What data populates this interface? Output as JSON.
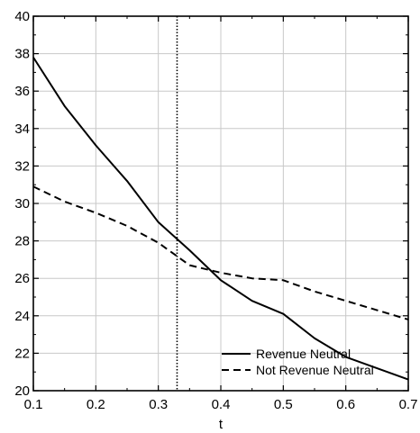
{
  "chart_data": {
    "type": "line",
    "title": "",
    "xlabel": "t",
    "ylabel": "",
    "xlim": [
      0.1,
      0.7
    ],
    "ylim": [
      20,
      40
    ],
    "x_ticks": [
      0.1,
      0.2,
      0.3,
      0.4,
      0.5,
      0.6,
      0.7
    ],
    "x_tick_labels": [
      "0.1",
      "0.2",
      "0.3",
      "0.4",
      "0.5",
      "0.6",
      "0.7"
    ],
    "y_ticks": [
      20,
      22,
      24,
      26,
      28,
      30,
      32,
      34,
      36,
      38,
      40
    ],
    "y_tick_labels": [
      "20",
      "22",
      "24",
      "26",
      "28",
      "30",
      "32",
      "34",
      "36",
      "38",
      "40"
    ],
    "grid": true,
    "legend_position": "bottom-right",
    "reference_line": {
      "x": 0.33,
      "style": "dotted"
    },
    "series": [
      {
        "name": "Revenue Neutral",
        "style": "solid",
        "color": "#000000",
        "x": [
          0.1,
          0.15,
          0.2,
          0.25,
          0.3,
          0.35,
          0.4,
          0.45,
          0.5,
          0.55,
          0.6,
          0.65,
          0.7
        ],
        "y": [
          37.8,
          35.2,
          33.1,
          31.2,
          29.0,
          27.5,
          25.9,
          24.8,
          24.1,
          22.8,
          21.8,
          21.2,
          20.6
        ]
      },
      {
        "name": "Not Revenue Neutral",
        "style": "dashed",
        "color": "#000000",
        "x": [
          0.1,
          0.15,
          0.2,
          0.25,
          0.3,
          0.35,
          0.4,
          0.45,
          0.5,
          0.55,
          0.6,
          0.65,
          0.7
        ],
        "y": [
          30.9,
          30.1,
          29.5,
          28.8,
          27.9,
          26.7,
          26.3,
          26.0,
          25.9,
          25.3,
          24.8,
          24.3,
          23.8
        ]
      }
    ]
  }
}
